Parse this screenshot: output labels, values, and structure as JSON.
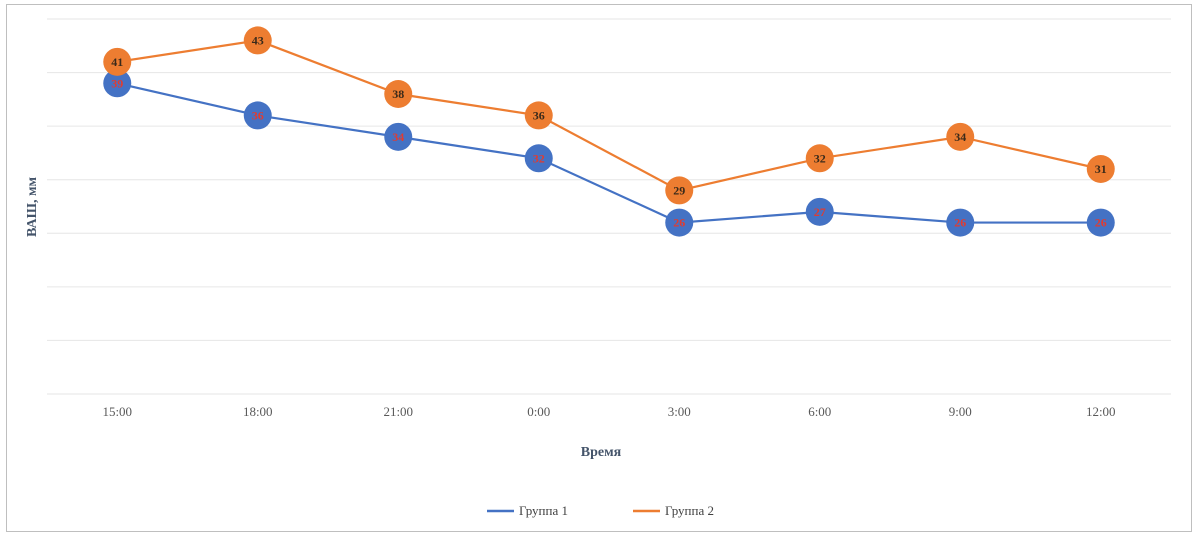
{
  "chart_data": {
    "type": "line",
    "categories": [
      "15:00",
      "18:00",
      "21:00",
      "0:00",
      "3:00",
      "6:00",
      "9:00",
      "12:00"
    ],
    "series": [
      {
        "name": "Группа 1",
        "color": "#4472c4",
        "values": [
          39,
          36,
          34,
          32,
          26,
          27,
          26,
          26
        ]
      },
      {
        "name": "Группа 2",
        "color": "#ed7d31",
        "values": [
          41,
          43,
          38,
          36,
          29,
          32,
          34,
          31
        ]
      }
    ],
    "xlabel": "Время",
    "ylabel": "ВАШ, мм",
    "ylim": [
      10,
      45
    ],
    "grid": true,
    "legend": "bottom"
  }
}
